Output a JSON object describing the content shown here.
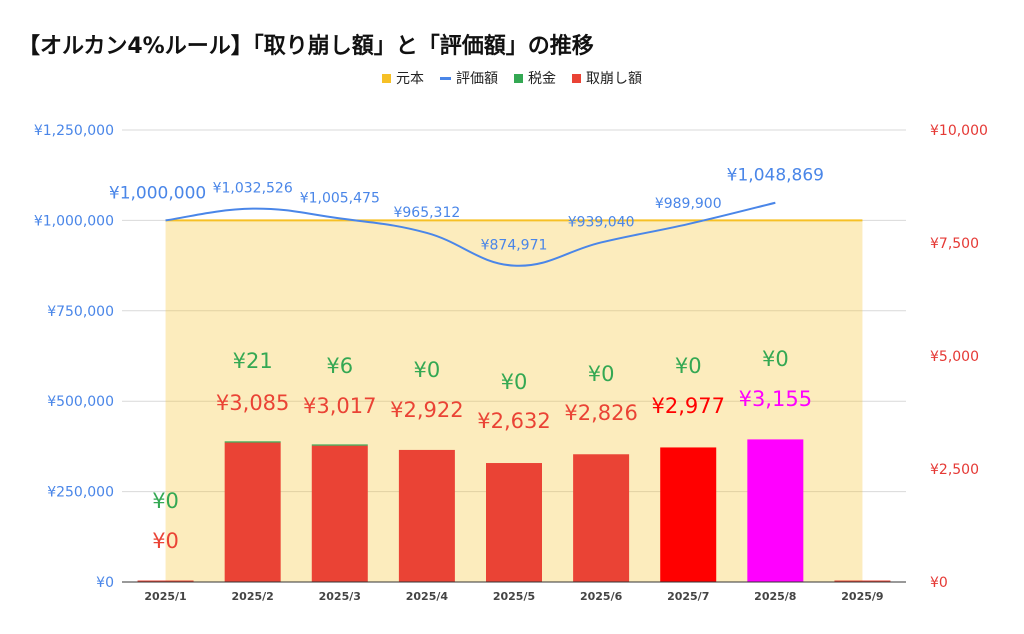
{
  "chart_data": {
    "type": "bar",
    "title": "【オルカン4%ルール】「取り崩し額」と「評価額」の推移",
    "categories": [
      "2025/1",
      "2025/2",
      "2025/3",
      "2025/4",
      "2025/5",
      "2025/6",
      "2025/7",
      "2025/8",
      "2025/9"
    ],
    "left_axis": {
      "ylim": [
        0,
        1250000
      ],
      "ticks": [
        "¥0",
        "¥250,000",
        "¥500,000",
        "¥750,000",
        "¥1,000,000",
        "¥1,250,000"
      ],
      "color": "#4a86e8"
    },
    "right_axis": {
      "ylim": [
        0,
        10000
      ],
      "ticks": [
        "¥0",
        "¥2,500",
        "¥5,000",
        "¥7,500",
        "¥10,000"
      ],
      "color": "#e53935"
    },
    "grid": true,
    "legend_position": "top-center",
    "series": [
      {
        "name": "元本",
        "type": "area",
        "axis": "left",
        "color": "#f6c026",
        "values": [
          1000000,
          1000000,
          1000000,
          1000000,
          1000000,
          1000000,
          1000000,
          1000000,
          1000000
        ]
      },
      {
        "name": "評価額",
        "type": "line",
        "axis": "left",
        "color": "#4a86e8",
        "values": [
          1000000,
          1032526,
          1005475,
          965312,
          874971,
          939040,
          989900,
          1048869,
          null
        ],
        "labels": [
          "¥1,000,000",
          "¥1,032,526",
          "¥1,005,475",
          "¥965,312",
          "¥874,971",
          "¥939,040",
          "¥989,900",
          "¥1,048,869",
          ""
        ]
      },
      {
        "name": "税金",
        "type": "bar",
        "axis": "right",
        "color": "#34a853",
        "values": [
          0,
          21,
          6,
          0,
          0,
          0,
          0,
          0,
          0
        ],
        "labels": [
          "¥0",
          "¥21",
          "¥6",
          "¥0",
          "¥0",
          "¥0",
          "¥0",
          "¥0",
          ""
        ]
      },
      {
        "name": "取崩し額",
        "type": "bar",
        "axis": "right",
        "color": "#ea4335",
        "values": [
          0,
          3085,
          3017,
          2922,
          2632,
          2826,
          2977,
          3155,
          0
        ],
        "labels": [
          "¥0",
          "¥3,085",
          "¥3,017",
          "¥2,922",
          "¥2,632",
          "¥2,826",
          "¥2,977",
          "¥3,155",
          ""
        ],
        "point_colors": [
          "#ea4335",
          "#ea4335",
          "#ea4335",
          "#ea4335",
          "#ea4335",
          "#ea4335",
          "#ff0000",
          "#ff00ff",
          "#ea4335"
        ],
        "label_colors": [
          "#ea4335",
          "#ea4335",
          "#ea4335",
          "#ea4335",
          "#ea4335",
          "#ea4335",
          "#ff0000",
          "#ff00ff",
          "#ea4335"
        ]
      }
    ]
  }
}
